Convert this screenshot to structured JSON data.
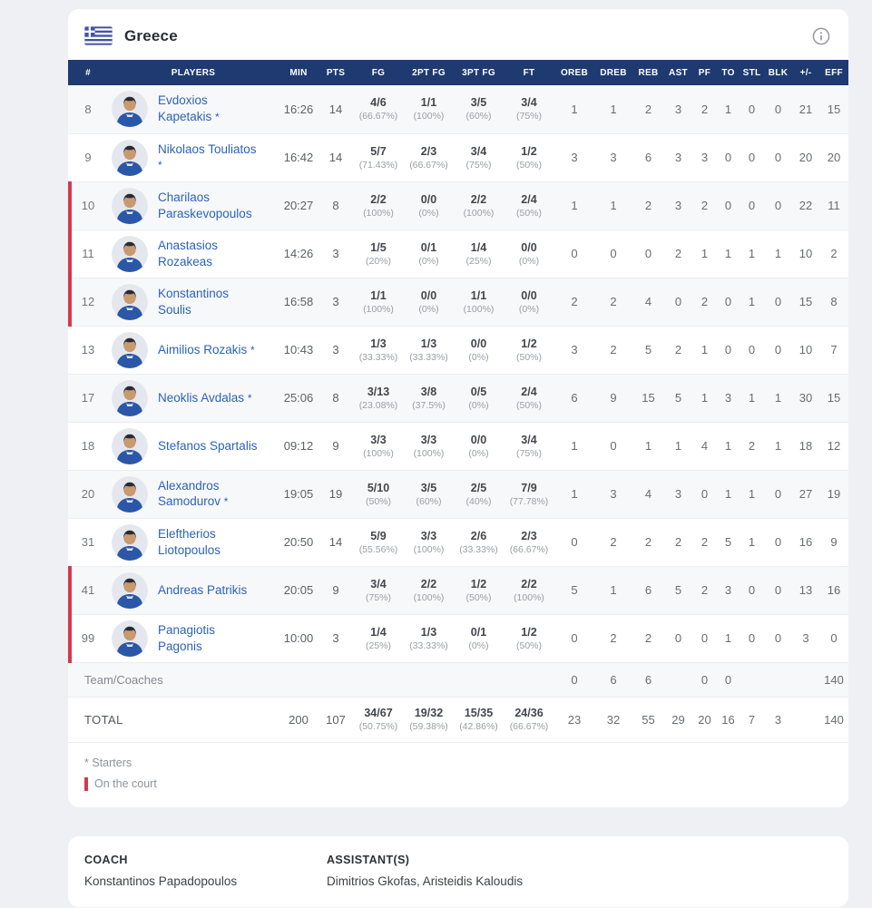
{
  "colors": {
    "header_navy": "#1e3a70",
    "player_name_blue": "#2d62b8",
    "on_court_red": "#d6394a"
  },
  "header": {
    "team": "Greece",
    "flag_icon": "greece-flag",
    "info_icon": "info-circle"
  },
  "table": {
    "headers": [
      "#",
      "PLAYERS",
      "MIN",
      "PTS",
      "FG",
      "2PT FG",
      "3PT FG",
      "FT",
      "OREB",
      "DREB",
      "REB",
      "AST",
      "PF",
      "TO",
      "STL",
      "BLK",
      "+/-",
      "EFF"
    ],
    "rows": [
      {
        "num": "8",
        "name": "Evdoxios Kapetakis",
        "starter": true,
        "on_court": false,
        "min": "16:26",
        "pts": "14",
        "fg": [
          "4/6",
          "(66.67%)"
        ],
        "fg2": [
          "1/1",
          "(100%)"
        ],
        "fg3": [
          "3/5",
          "(60%)"
        ],
        "ft": [
          "3/4",
          "(75%)"
        ],
        "oreb": "1",
        "dreb": "1",
        "reb": "2",
        "ast": "3",
        "pf": "2",
        "to": "1",
        "stl": "0",
        "blk": "0",
        "pm": "21",
        "eff": "15"
      },
      {
        "num": "9",
        "name": "Nikolaos Touliatos",
        "starter": true,
        "on_court": false,
        "min": "16:42",
        "pts": "14",
        "fg": [
          "5/7",
          "(71.43%)"
        ],
        "fg2": [
          "2/3",
          "(66.67%)"
        ],
        "fg3": [
          "3/4",
          "(75%)"
        ],
        "ft": [
          "1/2",
          "(50%)"
        ],
        "oreb": "3",
        "dreb": "3",
        "reb": "6",
        "ast": "3",
        "pf": "3",
        "to": "0",
        "stl": "0",
        "blk": "0",
        "pm": "20",
        "eff": "20"
      },
      {
        "num": "10",
        "name": "Charilaos Paraskevopoulos",
        "starter": false,
        "on_court": true,
        "min": "20:27",
        "pts": "8",
        "fg": [
          "2/2",
          "(100%)"
        ],
        "fg2": [
          "0/0",
          "(0%)"
        ],
        "fg3": [
          "2/2",
          "(100%)"
        ],
        "ft": [
          "2/4",
          "(50%)"
        ],
        "oreb": "1",
        "dreb": "1",
        "reb": "2",
        "ast": "3",
        "pf": "2",
        "to": "0",
        "stl": "0",
        "blk": "0",
        "pm": "22",
        "eff": "11"
      },
      {
        "num": "11",
        "name": "Anastasios Rozakeas",
        "starter": false,
        "on_court": true,
        "min": "14:26",
        "pts": "3",
        "fg": [
          "1/5",
          "(20%)"
        ],
        "fg2": [
          "0/1",
          "(0%)"
        ],
        "fg3": [
          "1/4",
          "(25%)"
        ],
        "ft": [
          "0/0",
          "(0%)"
        ],
        "oreb": "0",
        "dreb": "0",
        "reb": "0",
        "ast": "2",
        "pf": "1",
        "to": "1",
        "stl": "1",
        "blk": "1",
        "pm": "10",
        "eff": "2"
      },
      {
        "num": "12",
        "name": "Konstantinos Soulis",
        "starter": false,
        "on_court": true,
        "min": "16:58",
        "pts": "3",
        "fg": [
          "1/1",
          "(100%)"
        ],
        "fg2": [
          "0/0",
          "(0%)"
        ],
        "fg3": [
          "1/1",
          "(100%)"
        ],
        "ft": [
          "0/0",
          "(0%)"
        ],
        "oreb": "2",
        "dreb": "2",
        "reb": "4",
        "ast": "0",
        "pf": "2",
        "to": "0",
        "stl": "1",
        "blk": "0",
        "pm": "15",
        "eff": "8"
      },
      {
        "num": "13",
        "name": "Aimilios Rozakis",
        "starter": true,
        "on_court": false,
        "min": "10:43",
        "pts": "3",
        "fg": [
          "1/3",
          "(33.33%)"
        ],
        "fg2": [
          "1/3",
          "(33.33%)"
        ],
        "fg3": [
          "0/0",
          "(0%)"
        ],
        "ft": [
          "1/2",
          "(50%)"
        ],
        "oreb": "3",
        "dreb": "2",
        "reb": "5",
        "ast": "2",
        "pf": "1",
        "to": "0",
        "stl": "0",
        "blk": "0",
        "pm": "10",
        "eff": "7"
      },
      {
        "num": "17",
        "name": "Neoklis Avdalas",
        "starter": true,
        "on_court": false,
        "min": "25:06",
        "pts": "8",
        "fg": [
          "3/13",
          "(23.08%)"
        ],
        "fg2": [
          "3/8",
          "(37.5%)"
        ],
        "fg3": [
          "0/5",
          "(0%)"
        ],
        "ft": [
          "2/4",
          "(50%)"
        ],
        "oreb": "6",
        "dreb": "9",
        "reb": "15",
        "ast": "5",
        "pf": "1",
        "to": "3",
        "stl": "1",
        "blk": "1",
        "pm": "30",
        "eff": "15"
      },
      {
        "num": "18",
        "name": "Stefanos Spartalis",
        "starter": false,
        "on_court": false,
        "min": "09:12",
        "pts": "9",
        "fg": [
          "3/3",
          "(100%)"
        ],
        "fg2": [
          "3/3",
          "(100%)"
        ],
        "fg3": [
          "0/0",
          "(0%)"
        ],
        "ft": [
          "3/4",
          "(75%)"
        ],
        "oreb": "1",
        "dreb": "0",
        "reb": "1",
        "ast": "1",
        "pf": "4",
        "to": "1",
        "stl": "2",
        "blk": "1",
        "pm": "18",
        "eff": "12"
      },
      {
        "num": "20",
        "name": "Alexandros Samodurov",
        "starter": true,
        "on_court": false,
        "min": "19:05",
        "pts": "19",
        "fg": [
          "5/10",
          "(50%)"
        ],
        "fg2": [
          "3/5",
          "(60%)"
        ],
        "fg3": [
          "2/5",
          "(40%)"
        ],
        "ft": [
          "7/9",
          "(77.78%)"
        ],
        "oreb": "1",
        "dreb": "3",
        "reb": "4",
        "ast": "3",
        "pf": "0",
        "to": "1",
        "stl": "1",
        "blk": "0",
        "pm": "27",
        "eff": "19"
      },
      {
        "num": "31",
        "name": "Eleftherios Liotopoulos",
        "starter": false,
        "on_court": false,
        "min": "20:50",
        "pts": "14",
        "fg": [
          "5/9",
          "(55.56%)"
        ],
        "fg2": [
          "3/3",
          "(100%)"
        ],
        "fg3": [
          "2/6",
          "(33.33%)"
        ],
        "ft": [
          "2/3",
          "(66.67%)"
        ],
        "oreb": "0",
        "dreb": "2",
        "reb": "2",
        "ast": "2",
        "pf": "2",
        "to": "5",
        "stl": "1",
        "blk": "0",
        "pm": "16",
        "eff": "9"
      },
      {
        "num": "41",
        "name": "Andreas Patrikis",
        "starter": false,
        "on_court": true,
        "min": "20:05",
        "pts": "9",
        "fg": [
          "3/4",
          "(75%)"
        ],
        "fg2": [
          "2/2",
          "(100%)"
        ],
        "fg3": [
          "1/2",
          "(50%)"
        ],
        "ft": [
          "2/2",
          "(100%)"
        ],
        "oreb": "5",
        "dreb": "1",
        "reb": "6",
        "ast": "5",
        "pf": "2",
        "to": "3",
        "stl": "0",
        "blk": "0",
        "pm": "13",
        "eff": "16"
      },
      {
        "num": "99",
        "name": "Panagiotis Pagonis",
        "starter": false,
        "on_court": true,
        "min": "10:00",
        "pts": "3",
        "fg": [
          "1/4",
          "(25%)"
        ],
        "fg2": [
          "1/3",
          "(33.33%)"
        ],
        "fg3": [
          "0/1",
          "(0%)"
        ],
        "ft": [
          "1/2",
          "(50%)"
        ],
        "oreb": "0",
        "dreb": "2",
        "reb": "2",
        "ast": "0",
        "pf": "0",
        "to": "1",
        "stl": "0",
        "blk": "0",
        "pm": "3",
        "eff": "0"
      }
    ],
    "team_row": {
      "label": "Team/Coaches",
      "oreb": "0",
      "dreb": "6",
      "reb": "6",
      "ast": "",
      "pf": "0",
      "to": "0",
      "stl": "",
      "blk": "",
      "pm": "",
      "eff": "140"
    },
    "total_row": {
      "label": "TOTAL",
      "min": "200",
      "pts": "107",
      "fg": [
        "34/67",
        "(50.75%)"
      ],
      "fg2": [
        "19/32",
        "(59.38%)"
      ],
      "fg3": [
        "15/35",
        "(42.86%)"
      ],
      "ft": [
        "24/36",
        "(66.67%)"
      ],
      "oreb": "23",
      "dreb": "32",
      "reb": "55",
      "ast": "29",
      "pf": "20",
      "to": "16",
      "stl": "7",
      "blk": "3",
      "pm": "",
      "eff": "140"
    }
  },
  "legend": {
    "starters_symbol": "*",
    "starters_label": "Starters",
    "on_court_label": "On the court"
  },
  "coaches": {
    "coach_label": "COACH",
    "coach_name": "Konstantinos Papadopoulos",
    "assistant_label": "ASSISTANT(S)",
    "assistant_names": "Dimitrios Gkofas, Aristeidis Kaloudis"
  }
}
